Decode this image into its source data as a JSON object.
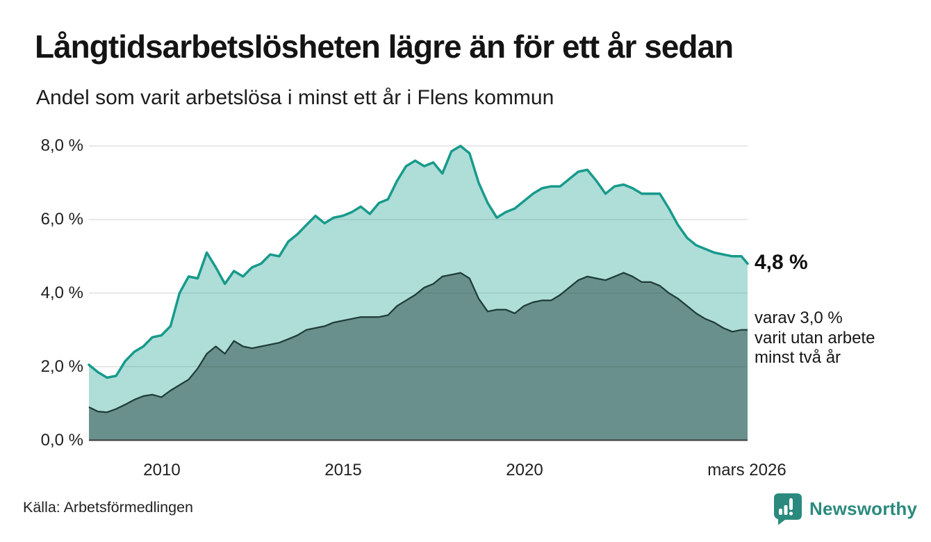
{
  "chart_data": {
    "type": "area",
    "title": "Långtidsarbetslösheten lägre än för ett år sedan",
    "subtitle": "Andel som varit arbetslösa i minst ett år i Flens kommun",
    "source": "Källa: Arbetsförmedlingen",
    "xlim": [
      2008,
      2026.17
    ],
    "ylim": [
      0,
      8
    ],
    "grid": "horizontal",
    "legend": "none",
    "yticks": [
      {
        "value": 0,
        "label": "0,0 %"
      },
      {
        "value": 2,
        "label": "2,0 %"
      },
      {
        "value": 4,
        "label": "4,0 %"
      },
      {
        "value": 6,
        "label": "6,0 %"
      },
      {
        "value": 8,
        "label": "8,0 %"
      }
    ],
    "xticks": [
      {
        "value": 2010,
        "label": "2010"
      },
      {
        "value": 2015,
        "label": "2015"
      },
      {
        "value": 2020,
        "label": "2020"
      },
      {
        "value": 2026.17,
        "label": "mars 2026"
      }
    ],
    "x": [
      2008,
      2008.25,
      2008.5,
      2008.75,
      2009,
      2009.25,
      2009.5,
      2009.75,
      2010,
      2010.25,
      2010.5,
      2010.75,
      2011,
      2011.25,
      2011.5,
      2011.75,
      2012,
      2012.25,
      2012.5,
      2012.75,
      2013,
      2013.25,
      2013.5,
      2013.75,
      2014,
      2014.25,
      2014.5,
      2014.75,
      2015,
      2015.25,
      2015.5,
      2015.75,
      2016,
      2016.25,
      2016.5,
      2016.75,
      2017,
      2017.25,
      2017.5,
      2017.75,
      2018,
      2018.25,
      2018.5,
      2018.75,
      2019,
      2019.25,
      2019.5,
      2019.75,
      2020,
      2020.25,
      2020.5,
      2020.75,
      2021,
      2021.25,
      2021.5,
      2021.75,
      2022,
      2022.25,
      2022.5,
      2022.75,
      2023,
      2023.25,
      2023.5,
      2023.75,
      2024,
      2024.25,
      2024.5,
      2024.75,
      2025,
      2025.25,
      2025.5,
      2025.75,
      2026,
      2026.17
    ],
    "series": [
      {
        "name": "Andel arbetslösa minst ett år",
        "latest_value": 4.8,
        "values": [
          2.05,
          1.85,
          1.7,
          1.75,
          2.15,
          2.4,
          2.55,
          2.8,
          2.85,
          3.1,
          4.0,
          4.45,
          4.4,
          5.1,
          4.7,
          4.25,
          4.6,
          4.45,
          4.7,
          4.8,
          5.05,
          5.0,
          5.4,
          5.6,
          5.85,
          6.1,
          5.9,
          6.05,
          6.1,
          6.2,
          6.35,
          6.15,
          6.45,
          6.55,
          7.05,
          7.45,
          7.6,
          7.45,
          7.55,
          7.25,
          7.85,
          8.0,
          7.8,
          7.0,
          6.45,
          6.05,
          6.2,
          6.3,
          6.5,
          6.7,
          6.85,
          6.9,
          6.9,
          7.1,
          7.3,
          7.35,
          7.05,
          6.7,
          6.9,
          6.95,
          6.85,
          6.7,
          6.7,
          6.7,
          6.3,
          5.85,
          5.5,
          5.3,
          5.2,
          5.1,
          5.05,
          5.0,
          5.0,
          4.8
        ]
      },
      {
        "name": "Andel arbetslösa minst två år",
        "latest_value": 3.0,
        "values": [
          0.9,
          0.78,
          0.76,
          0.85,
          0.97,
          1.1,
          1.2,
          1.24,
          1.17,
          1.35,
          1.5,
          1.65,
          1.95,
          2.35,
          2.55,
          2.35,
          2.7,
          2.55,
          2.5,
          2.55,
          2.6,
          2.65,
          2.75,
          2.85,
          3.0,
          3.05,
          3.1,
          3.2,
          3.25,
          3.3,
          3.35,
          3.35,
          3.35,
          3.4,
          3.65,
          3.8,
          3.95,
          4.15,
          4.25,
          4.45,
          4.5,
          4.55,
          4.4,
          3.85,
          3.5,
          3.55,
          3.55,
          3.45,
          3.65,
          3.75,
          3.8,
          3.8,
          3.95,
          4.15,
          4.35,
          4.45,
          4.4,
          4.35,
          4.45,
          4.55,
          4.45,
          4.3,
          4.3,
          4.2,
          4.0,
          3.85,
          3.65,
          3.45,
          3.3,
          3.2,
          3.05,
          2.95,
          3.0,
          3.0
        ]
      }
    ],
    "end_labels": {
      "primary": "4,8 %",
      "secondary": [
        "varav 3,0 %",
        "varit utan arbete",
        "minst två år"
      ]
    },
    "colors": {
      "line_1yr": "#179a8b",
      "area_1yr": "rgba(25,158,142,0.35)",
      "line_2yr": "#1e3c38",
      "area_2yr": "rgba(30,61,57,0.48)",
      "grid": "#e0e0e0",
      "axis": "#3b3b3b",
      "brand": "#2b8a7d"
    }
  },
  "footer": {
    "brand": "Newsworthy"
  }
}
